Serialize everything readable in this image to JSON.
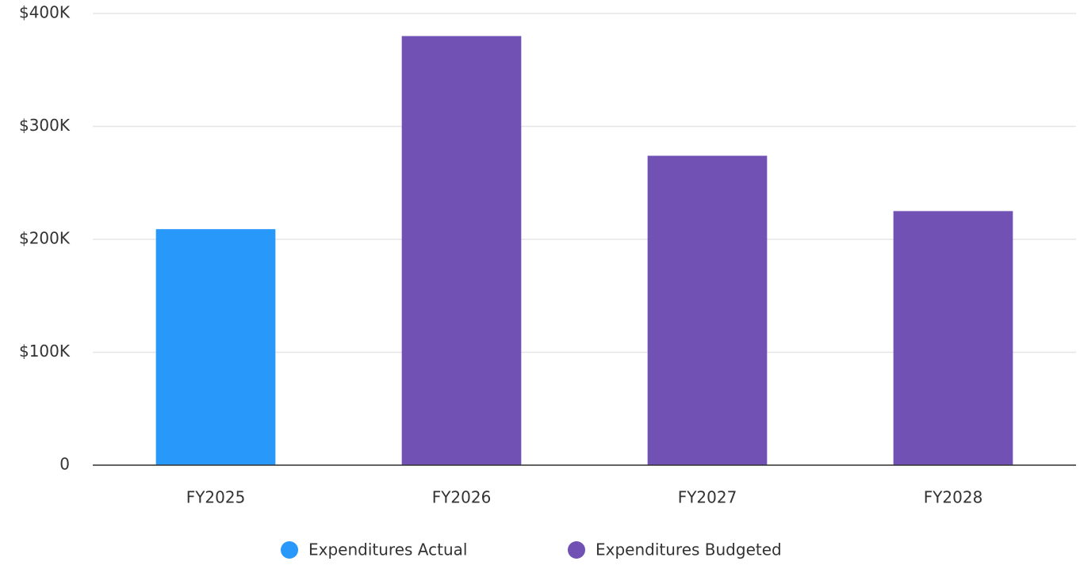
{
  "chart_data": {
    "type": "bar",
    "categories": [
      "FY2025",
      "FY2026",
      "FY2027",
      "FY2028"
    ],
    "series": [
      {
        "name": "Expenditures Actual",
        "color": "#2898fb",
        "values": [
          209000,
          null,
          null,
          null
        ]
      },
      {
        "name": "Expenditures Budgeted",
        "color": "#7251b5",
        "values": [
          null,
          380000,
          274000,
          225000
        ]
      }
    ],
    "ylim": [
      0,
      400000
    ],
    "yticks": [
      0,
      {
        "value": 100000,
        "label": "$100K"
      },
      {
        "value": 200000,
        "label": "$200K"
      },
      {
        "value": 300000,
        "label": "$300K"
      },
      {
        "value": 400000,
        "label": "$400K"
      }
    ],
    "grid": true
  }
}
